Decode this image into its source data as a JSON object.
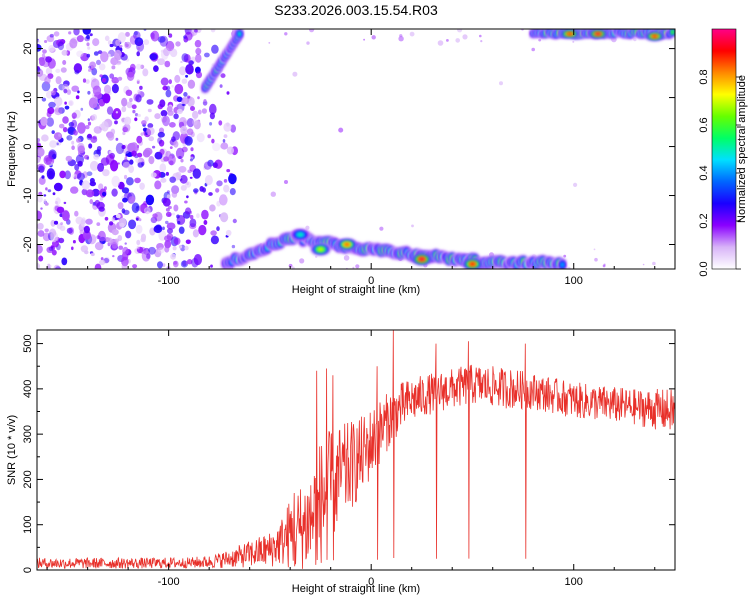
{
  "title": "S233.2026.003.15.54.R03",
  "chart_data": [
    {
      "type": "heatmap",
      "xlabel": "Height of straight line (km)",
      "ylabel": "Frequency (Hz)",
      "xlim": [
        -165,
        150
      ],
      "ylim": [
        -25,
        24
      ],
      "xticks": [
        -100,
        0,
        100
      ],
      "xtick_labels": [
        "-100",
        "0",
        "100"
      ],
      "yticks": [
        -20,
        -10,
        0,
        10,
        20
      ],
      "ytick_labels": [
        "-20",
        "-10",
        "0",
        "10",
        "20"
      ],
      "colorbar": {
        "label": "Normalized spectral amplitude",
        "range": [
          0.0,
          1.0
        ],
        "ticks": [
          0.0,
          0.2,
          0.4,
          0.6,
          0.8
        ],
        "tick_labels": [
          "0.0",
          "0.2",
          "0.4",
          "0.6",
          "0.8"
        ],
        "colors": [
          "#ffffff",
          "#d8b4f8",
          "#8a00ff",
          "#1a00ff",
          "#0066ff",
          "#00e0ff",
          "#00ff66",
          "#66ff00",
          "#ffff00",
          "#ff8800",
          "#ff0000",
          "#ff0088"
        ]
      },
      "features": {
        "diffuse_region_x": [
          -165,
          -75
        ],
        "diffuse_amplitude": 0.2,
        "upper_diagonal": {
          "x": [
            -82,
            -65
          ],
          "y": [
            12,
            23
          ],
          "amplitude": 0.55
        },
        "lower_band": {
          "x": [
            -72,
            150
          ],
          "y": [
            -24,
            -19
          ],
          "amplitude": 0.75
        },
        "lower_band_peaks": [
          {
            "x": -35,
            "y": -18,
            "amplitude": 0.5
          },
          {
            "x": -25,
            "y": -21,
            "amplitude": 0.7
          },
          {
            "x": -12,
            "y": -20,
            "amplitude": 0.85
          },
          {
            "x": 25,
            "y": -23,
            "amplitude": 0.95
          },
          {
            "x": 50,
            "y": -24,
            "amplitude": 0.9
          }
        ],
        "upper_band": {
          "x": [
            80,
            150
          ],
          "y": [
            22,
            24
          ],
          "amplitude": 0.85
        },
        "upper_band_peaks": [
          {
            "x": 98,
            "y": 23,
            "amplitude": 0.9
          },
          {
            "x": 112,
            "y": 23,
            "amplitude": 0.95
          },
          {
            "x": 140,
            "y": 22.5,
            "amplitude": 0.9
          }
        ]
      }
    },
    {
      "type": "line",
      "xlabel": "Height of straight line (km)",
      "ylabel": "SNR (10 * v/v)",
      "xlim": [
        -165,
        150
      ],
      "ylim": [
        0,
        530
      ],
      "xticks": [
        -100,
        0,
        100
      ],
      "xtick_labels": [
        "-100",
        "0",
        "100"
      ],
      "yticks": [
        0,
        100,
        200,
        300,
        400,
        500
      ],
      "ytick_labels": [
        "0",
        "100",
        "200",
        "300",
        "400",
        "500"
      ],
      "color": "#e8302a",
      "series": [
        {
          "name": "SNR",
          "x": [
            -165,
            -140,
            -110,
            -90,
            -80,
            -70,
            -60,
            -50,
            -45,
            -40,
            -35,
            -30,
            -25,
            -20,
            -15,
            -10,
            -5,
            0,
            5,
            10,
            15,
            20,
            30,
            40,
            50,
            60,
            70,
            80,
            90,
            100,
            110,
            120,
            130,
            140,
            150
          ],
          "y": [
            15,
            15,
            15,
            16,
            18,
            25,
            35,
            45,
            60,
            80,
            90,
            110,
            150,
            180,
            210,
            230,
            250,
            280,
            310,
            340,
            360,
            375,
            390,
            400,
            410,
            405,
            400,
            395,
            385,
            375,
            370,
            365,
            360,
            355,
            350
          ],
          "noise_amplitude": [
            12,
            12,
            12,
            12,
            14,
            20,
            30,
            40,
            50,
            80,
            100,
            120,
            140,
            130,
            110,
            100,
            90,
            80,
            70,
            60,
            55,
            50,
            45,
            45,
            45,
            45,
            45,
            40,
            40,
            40,
            40,
            40,
            40,
            45,
            50
          ]
        }
      ],
      "spikes": [
        {
          "x": -38,
          "y": 170
        },
        {
          "x": -27,
          "y": 440
        },
        {
          "x": -22,
          "y": 445
        },
        {
          "x": -19,
          "y": 430
        },
        {
          "x": 3,
          "y": 450
        },
        {
          "x": 11,
          "y": 530
        },
        {
          "x": 32,
          "y": 500
        },
        {
          "x": 48,
          "y": 505
        },
        {
          "x": 76,
          "y": 500
        }
      ]
    }
  ]
}
